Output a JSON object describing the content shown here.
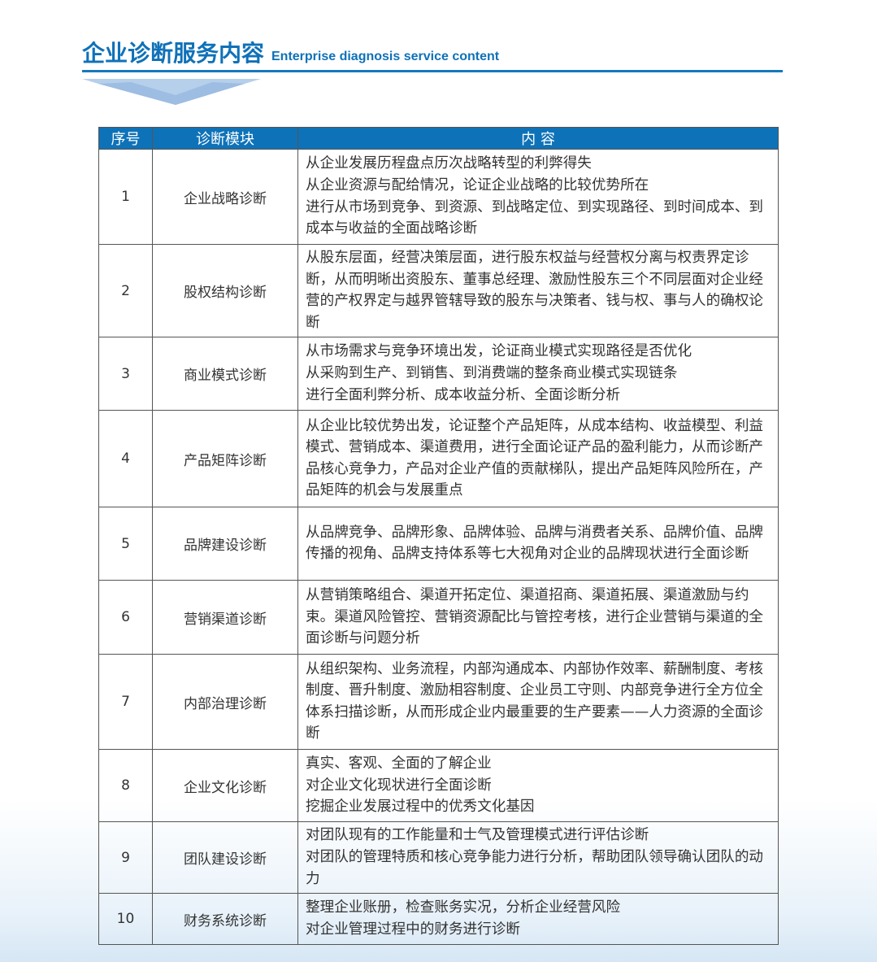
{
  "header": {
    "title_cn": "企业诊断服务内容",
    "title_en": "Enterprise diagnosis service content",
    "accent": "#0f71b8"
  },
  "table": {
    "columns": [
      "序号",
      "诊断模块",
      "内 容"
    ],
    "rows": [
      {
        "num": "1",
        "module": "企业战略诊断",
        "lines": [
          "从企业发展历程盘点历次战略转型的利弊得失",
          "从企业资源与配给情况，论证企业战略的比较优势所在",
          "进行从市场到竞争、到资源、到战略定位、到实现路径、到时间成本、到成本与收益的全面战略诊断"
        ]
      },
      {
        "num": "2",
        "module": "股权结构诊断",
        "lines": [
          "从股东层面，经营决策层面，进行股东权益与经营权分离与权责界定诊断，从而明晰出资股东、董事总经理、激励性股东三个不同层面对企业经营的产权界定与越界管辖导致的股东与决策者、钱与权、事与人的确权论断"
        ]
      },
      {
        "num": "3",
        "module": "商业模式诊断",
        "lines": [
          "从市场需求与竞争环境出发，论证商业模式实现路径是否优化",
          "从采购到生产、到销售、到消费端的整条商业模式实现链条",
          "进行全面利弊分析、成本收益分析、全面诊断分析"
        ]
      },
      {
        "num": "4",
        "module": "产品矩阵诊断",
        "lines": [
          "从企业比较优势出发，论证整个产品矩阵，从成本结构、收益模型、利益模式、营销成本、渠道费用，进行全面论证产品的盈利能力，从而诊断产品核心竞争力，产品对企业产值的贡献梯队，提出产品矩阵风险所在，产品矩阵的机会与发展重点"
        ]
      },
      {
        "num": "5",
        "module": "品牌建设诊断",
        "lines": [
          "从品牌竞争、品牌形象、品牌体验、品牌与消费者关系、品牌价值、品牌传播的视角、品牌支持体系等七大视角对企业的品牌现状进行全面诊断"
        ]
      },
      {
        "num": "6",
        "module": "营销渠道诊断",
        "lines": [
          "从营销策略组合、渠道开拓定位、渠道招商、渠道拓展、渠道激励与约束。渠道风险管控、营销资源配比与管控考核，进行企业营销与渠道的全面诊断与问题分析"
        ]
      },
      {
        "num": "7",
        "module": "内部治理诊断",
        "lines": [
          "从组织架构、业务流程，内部沟通成本、内部协作效率、薪酬制度、考核制度、晋升制度、激励相容制度、企业员工守则、内部竞争进行全方位全体系扫描诊断，从而形成企业内最重要的生产要素——人力资源的全面诊断"
        ]
      },
      {
        "num": "8",
        "module": "企业文化诊断",
        "lines": [
          "真实、客观、全面的了解企业",
          "对企业文化现状进行全面诊断",
          "挖掘企业发展过程中的优秀文化基因"
        ]
      },
      {
        "num": "9",
        "module": "团队建设诊断",
        "lines": [
          "对团队现有的工作能量和士气及管理模式进行评估诊断",
          "对团队的管理特质和核心竞争能力进行分析，帮助团队领导确认团队的动力"
        ]
      },
      {
        "num": "10",
        "module": "财务系统诊断",
        "lines": [
          "整理企业账册，检查账务实况，分析企业经营风险",
          "对企业管理过程中的财务进行诊断"
        ]
      }
    ]
  }
}
